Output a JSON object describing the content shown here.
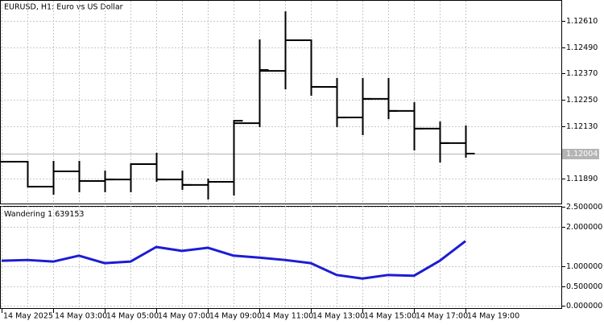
{
  "chart_data": [
    {
      "type": "ohlc",
      "title": "EURUSD, H1:  Euro vs US Dollar",
      "categories": [
        "14 May 2025",
        null,
        "14 May 03:00",
        null,
        "14 May 05:00",
        null,
        "14 May 07:00",
        null,
        "14 May 09:00",
        null,
        "14 May 11:00",
        null,
        "14 May 13:00",
        null,
        "14 May 15:00",
        null,
        "14 May 17:00",
        null,
        "14 May 19:00"
      ],
      "open": [
        1.11967,
        1.11967,
        1.11853,
        1.11923,
        1.11879,
        1.11886,
        1.11956,
        1.11886,
        1.11861,
        1.11875,
        1.12143,
        1.12382,
        1.12522,
        1.12309,
        1.12169,
        1.12254,
        1.12199,
        1.12118,
        1.12052
      ],
      "high": [
        1.11967,
        1.11967,
        1.11967,
        1.11967,
        1.11923,
        1.11956,
        1.12004,
        1.11923,
        1.11886,
        1.12154,
        1.12522,
        1.1265,
        1.12522,
        1.12346,
        1.12346,
        1.12346,
        1.12235,
        1.12147,
        1.12129
      ],
      "low": [
        1.11967,
        1.11853,
        1.1182,
        1.11831,
        1.11831,
        1.11831,
        1.11879,
        1.11842,
        1.11798,
        1.11816,
        1.12129,
        1.12301,
        1.12272,
        1.12129,
        1.12092,
        1.12165,
        1.12022,
        1.11967,
        1.11989
      ],
      "close": [
        1.11967,
        1.11853,
        1.11923,
        1.11879,
        1.11886,
        1.11956,
        1.11886,
        1.11861,
        1.11875,
        1.12154,
        1.12386,
        1.12522,
        1.12309,
        1.12169,
        1.12254,
        1.12199,
        1.12118,
        1.12052,
        1.12004
      ],
      "color": "#000000",
      "ylim": [
        1.11776,
        1.12702
      ],
      "yticks": [
        {
          "value": 1.1189,
          "label": "1.11890"
        },
        {
          "value": 1.1213,
          "label": "1.12130"
        },
        {
          "value": 1.1225,
          "label": "1.12250"
        },
        {
          "value": 1.1237,
          "label": "1.12370"
        },
        {
          "value": 1.1249,
          "label": "1.12490"
        },
        {
          "value": 1.1261,
          "label": "1.12610"
        }
      ],
      "grid": true
    },
    {
      "type": "line",
      "title": "Wandering",
      "series": [
        {
          "name": "Wandering",
          "color": "#1c1cd4",
          "values": [
            1.14,
            1.16,
            1.12,
            1.27,
            1.08,
            1.12,
            1.49,
            1.39,
            1.47,
            1.27,
            1.22,
            1.16,
            1.08,
            0.78,
            0.69,
            0.78,
            0.76,
            1.14,
            1.639153
          ]
        }
      ],
      "ylim": [
        -0.08,
        2.53
      ],
      "yticks": [
        {
          "value": 0,
          "label": "0.000000"
        },
        {
          "value": 0.5,
          "label": "0.500000"
        },
        {
          "value": 1,
          "label": "1.000000"
        },
        {
          "value": 2,
          "label": "2.000000"
        },
        {
          "value": 2.5,
          "label": "2.500000"
        }
      ],
      "grid": true
    }
  ]
}
